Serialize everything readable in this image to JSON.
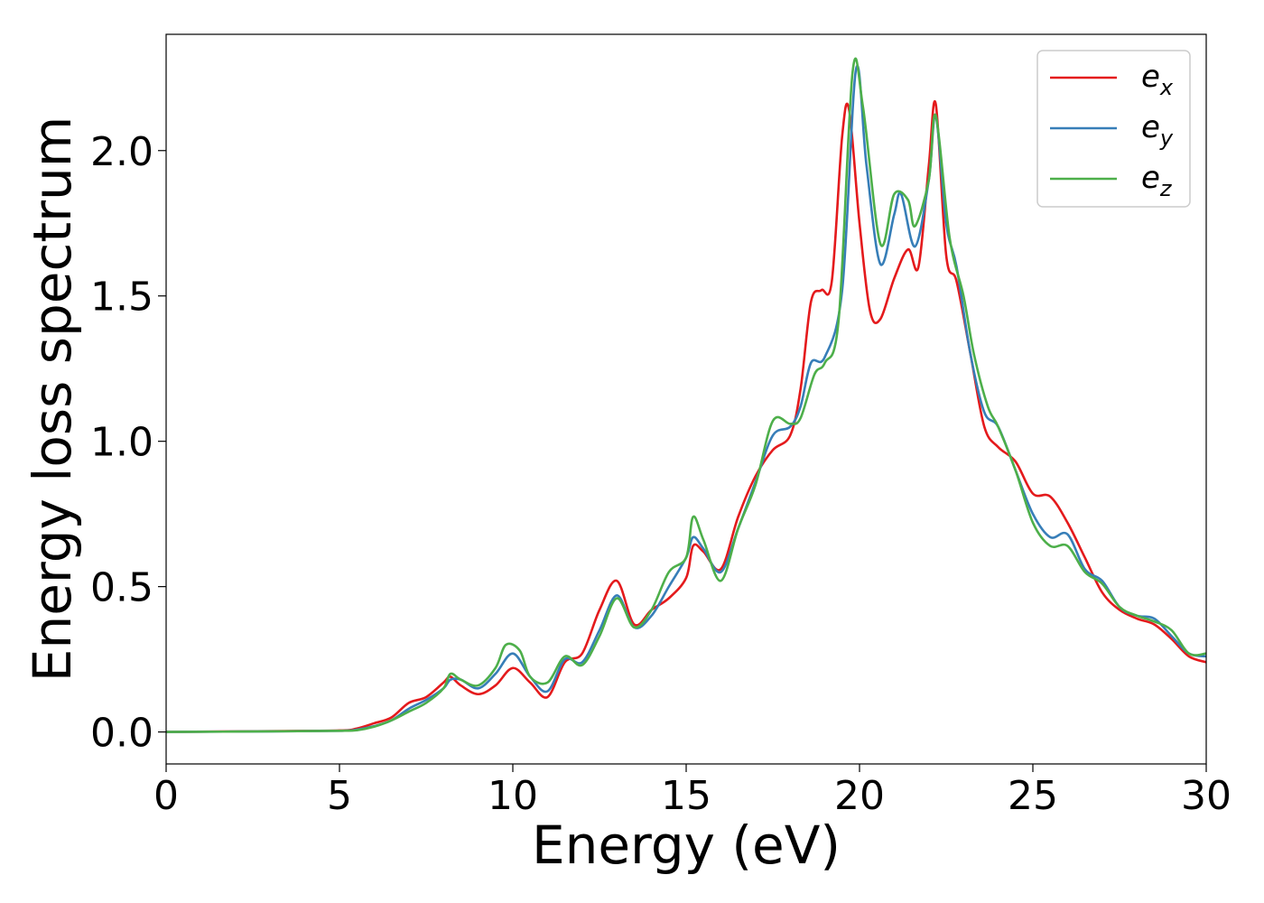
{
  "chart_data": {
    "type": "line",
    "title": "",
    "xlabel": "Energy (eV)",
    "ylabel": "Energy loss spectrum",
    "xlim": [
      0,
      30
    ],
    "ylim": [
      -0.11,
      2.4
    ],
    "xticks": [
      0,
      5,
      10,
      15,
      20,
      25,
      30
    ],
    "xtick_labels": [
      "0",
      "5",
      "10",
      "15",
      "20",
      "25",
      "30"
    ],
    "yticks": [
      0.0,
      0.5,
      1.0,
      1.5,
      2.0
    ],
    "ytick_labels": [
      "0.0",
      "0.5",
      "1.0",
      "1.5",
      "2.0"
    ],
    "grid": false,
    "legend_position": "top-right",
    "series": [
      {
        "name": "e_x",
        "label_base": "e",
        "label_sub": "x",
        "color": "#e41a1c",
        "points": [
          [
            0,
            0
          ],
          [
            3,
            0.003
          ],
          [
            5,
            0.005
          ],
          [
            5.5,
            0.012
          ],
          [
            6,
            0.03
          ],
          [
            6.5,
            0.05
          ],
          [
            7,
            0.1
          ],
          [
            7.5,
            0.12
          ],
          [
            8,
            0.17
          ],
          [
            8.2,
            0.19
          ],
          [
            8.5,
            0.16
          ],
          [
            9,
            0.13
          ],
          [
            9.5,
            0.16
          ],
          [
            10,
            0.22
          ],
          [
            10.5,
            0.17
          ],
          [
            11,
            0.12
          ],
          [
            11.5,
            0.24
          ],
          [
            12,
            0.27
          ],
          [
            12.5,
            0.42
          ],
          [
            13,
            0.52
          ],
          [
            13.5,
            0.37
          ],
          [
            14,
            0.42
          ],
          [
            14.5,
            0.46
          ],
          [
            15,
            0.53
          ],
          [
            15.2,
            0.64
          ],
          [
            15.5,
            0.62
          ],
          [
            16,
            0.56
          ],
          [
            16.5,
            0.74
          ],
          [
            17,
            0.88
          ],
          [
            17.5,
            0.97
          ],
          [
            18,
            1.02
          ],
          [
            18.3,
            1.18
          ],
          [
            18.6,
            1.48
          ],
          [
            18.9,
            1.52
          ],
          [
            19.2,
            1.55
          ],
          [
            19.5,
            2.05
          ],
          [
            19.7,
            2.14
          ],
          [
            20,
            1.75
          ],
          [
            20.3,
            1.45
          ],
          [
            20.6,
            1.42
          ],
          [
            21,
            1.56
          ],
          [
            21.4,
            1.66
          ],
          [
            21.7,
            1.6
          ],
          [
            22,
            1.95
          ],
          [
            22.2,
            2.16
          ],
          [
            22.5,
            1.64
          ],
          [
            22.8,
            1.55
          ],
          [
            23.2,
            1.3
          ],
          [
            23.6,
            1.05
          ],
          [
            24,
            0.98
          ],
          [
            24.5,
            0.93
          ],
          [
            25,
            0.82
          ],
          [
            25.5,
            0.81
          ],
          [
            26,
            0.72
          ],
          [
            26.5,
            0.6
          ],
          [
            27,
            0.48
          ],
          [
            27.5,
            0.42
          ],
          [
            28,
            0.39
          ],
          [
            28.5,
            0.37
          ],
          [
            29,
            0.32
          ],
          [
            29.5,
            0.26
          ],
          [
            30,
            0.24
          ]
        ]
      },
      {
        "name": "e_y",
        "label_base": "e",
        "label_sub": "y",
        "color": "#377eb8",
        "points": [
          [
            0,
            0
          ],
          [
            3,
            0.002
          ],
          [
            5,
            0.004
          ],
          [
            5.5,
            0.008
          ],
          [
            6,
            0.02
          ],
          [
            6.5,
            0.04
          ],
          [
            7,
            0.08
          ],
          [
            7.5,
            0.11
          ],
          [
            8,
            0.15
          ],
          [
            8.2,
            0.18
          ],
          [
            8.5,
            0.18
          ],
          [
            9,
            0.15
          ],
          [
            9.5,
            0.2
          ],
          [
            10,
            0.27
          ],
          [
            10.5,
            0.19
          ],
          [
            11,
            0.14
          ],
          [
            11.5,
            0.25
          ],
          [
            12,
            0.24
          ],
          [
            12.5,
            0.35
          ],
          [
            13,
            0.47
          ],
          [
            13.5,
            0.36
          ],
          [
            14,
            0.4
          ],
          [
            14.5,
            0.5
          ],
          [
            15,
            0.6
          ],
          [
            15.2,
            0.67
          ],
          [
            15.5,
            0.63
          ],
          [
            16,
            0.55
          ],
          [
            16.5,
            0.7
          ],
          [
            17,
            0.86
          ],
          [
            17.5,
            1.02
          ],
          [
            18,
            1.05
          ],
          [
            18.3,
            1.12
          ],
          [
            18.6,
            1.27
          ],
          [
            19,
            1.29
          ],
          [
            19.5,
            1.52
          ],
          [
            19.9,
            2.28
          ],
          [
            20.2,
            1.95
          ],
          [
            20.6,
            1.61
          ],
          [
            21,
            1.78
          ],
          [
            21.2,
            1.85
          ],
          [
            21.6,
            1.67
          ],
          [
            22,
            1.9
          ],
          [
            22.2,
            2.12
          ],
          [
            22.5,
            1.75
          ],
          [
            22.8,
            1.6
          ],
          [
            23.2,
            1.3
          ],
          [
            23.6,
            1.1
          ],
          [
            24,
            1.05
          ],
          [
            24.5,
            0.9
          ],
          [
            25,
            0.75
          ],
          [
            25.5,
            0.67
          ],
          [
            26,
            0.68
          ],
          [
            26.5,
            0.56
          ],
          [
            27,
            0.52
          ],
          [
            27.5,
            0.43
          ],
          [
            28,
            0.4
          ],
          [
            28.5,
            0.39
          ],
          [
            29,
            0.33
          ],
          [
            29.5,
            0.27
          ],
          [
            30,
            0.26
          ]
        ]
      },
      {
        "name": "e_z",
        "label_base": "e",
        "label_sub": "z",
        "color": "#4daf4a",
        "points": [
          [
            0,
            0
          ],
          [
            3,
            0.002
          ],
          [
            5,
            0.004
          ],
          [
            5.5,
            0.006
          ],
          [
            6,
            0.018
          ],
          [
            6.5,
            0.04
          ],
          [
            7,
            0.07
          ],
          [
            7.5,
            0.1
          ],
          [
            8,
            0.15
          ],
          [
            8.2,
            0.2
          ],
          [
            8.5,
            0.18
          ],
          [
            9,
            0.16
          ],
          [
            9.5,
            0.22
          ],
          [
            9.8,
            0.3
          ],
          [
            10.2,
            0.28
          ],
          [
            10.5,
            0.19
          ],
          [
            11,
            0.17
          ],
          [
            11.5,
            0.26
          ],
          [
            12,
            0.23
          ],
          [
            12.5,
            0.33
          ],
          [
            13,
            0.46
          ],
          [
            13.5,
            0.36
          ],
          [
            14,
            0.42
          ],
          [
            14.5,
            0.55
          ],
          [
            15,
            0.6
          ],
          [
            15.2,
            0.74
          ],
          [
            15.5,
            0.66
          ],
          [
            16,
            0.52
          ],
          [
            16.5,
            0.7
          ],
          [
            17,
            0.85
          ],
          [
            17.5,
            1.07
          ],
          [
            18,
            1.06
          ],
          [
            18.3,
            1.08
          ],
          [
            18.7,
            1.23
          ],
          [
            19,
            1.27
          ],
          [
            19.4,
            1.42
          ],
          [
            19.8,
            2.27
          ],
          [
            20.1,
            2.15
          ],
          [
            20.6,
            1.68
          ],
          [
            21,
            1.85
          ],
          [
            21.4,
            1.83
          ],
          [
            21.6,
            1.74
          ],
          [
            22,
            1.9
          ],
          [
            22.2,
            2.12
          ],
          [
            22.6,
            1.7
          ],
          [
            23,
            1.5
          ],
          [
            23.3,
            1.3
          ],
          [
            23.7,
            1.12
          ],
          [
            24,
            1.05
          ],
          [
            24.5,
            0.9
          ],
          [
            25,
            0.72
          ],
          [
            25.5,
            0.64
          ],
          [
            26,
            0.64
          ],
          [
            26.5,
            0.55
          ],
          [
            27,
            0.51
          ],
          [
            27.5,
            0.43
          ],
          [
            28,
            0.4
          ],
          [
            28.5,
            0.38
          ],
          [
            29,
            0.35
          ],
          [
            29.5,
            0.27
          ],
          [
            30,
            0.27
          ]
        ]
      }
    ]
  }
}
